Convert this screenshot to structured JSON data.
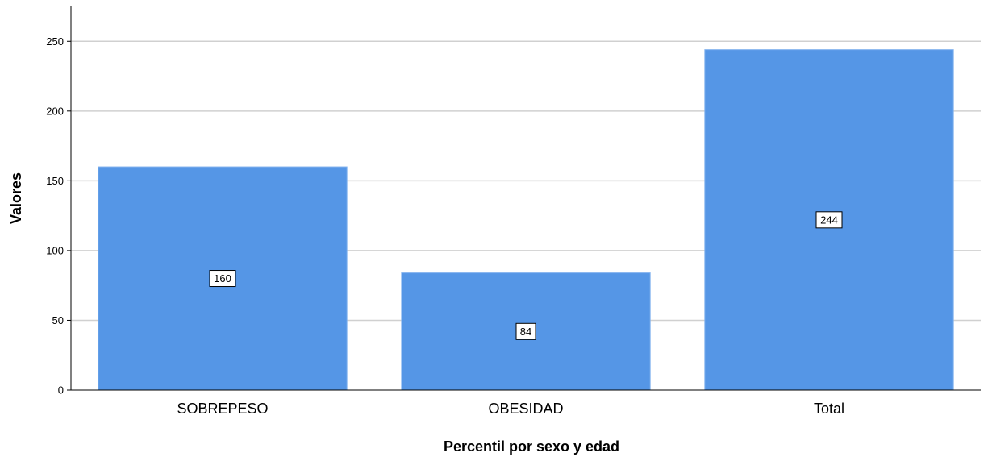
{
  "chart_data": {
    "type": "bar",
    "categories": [
      "SOBREPESO",
      "OBESIDAD",
      "Total"
    ],
    "values": [
      160,
      84,
      244
    ],
    "data_labels": [
      "160",
      "84",
      "244"
    ],
    "xlabel": "Percentil por sexo y edad",
    "ylabel": "Valores",
    "ylim": [
      0,
      275
    ],
    "yticks": [
      0,
      50,
      100,
      150,
      200,
      250
    ],
    "ytick_labels": [
      "0",
      "50",
      "100",
      "150",
      "200",
      "250"
    ],
    "grid": true,
    "bar_color": "#5596e6",
    "grid_color": "#d0d0d0"
  }
}
